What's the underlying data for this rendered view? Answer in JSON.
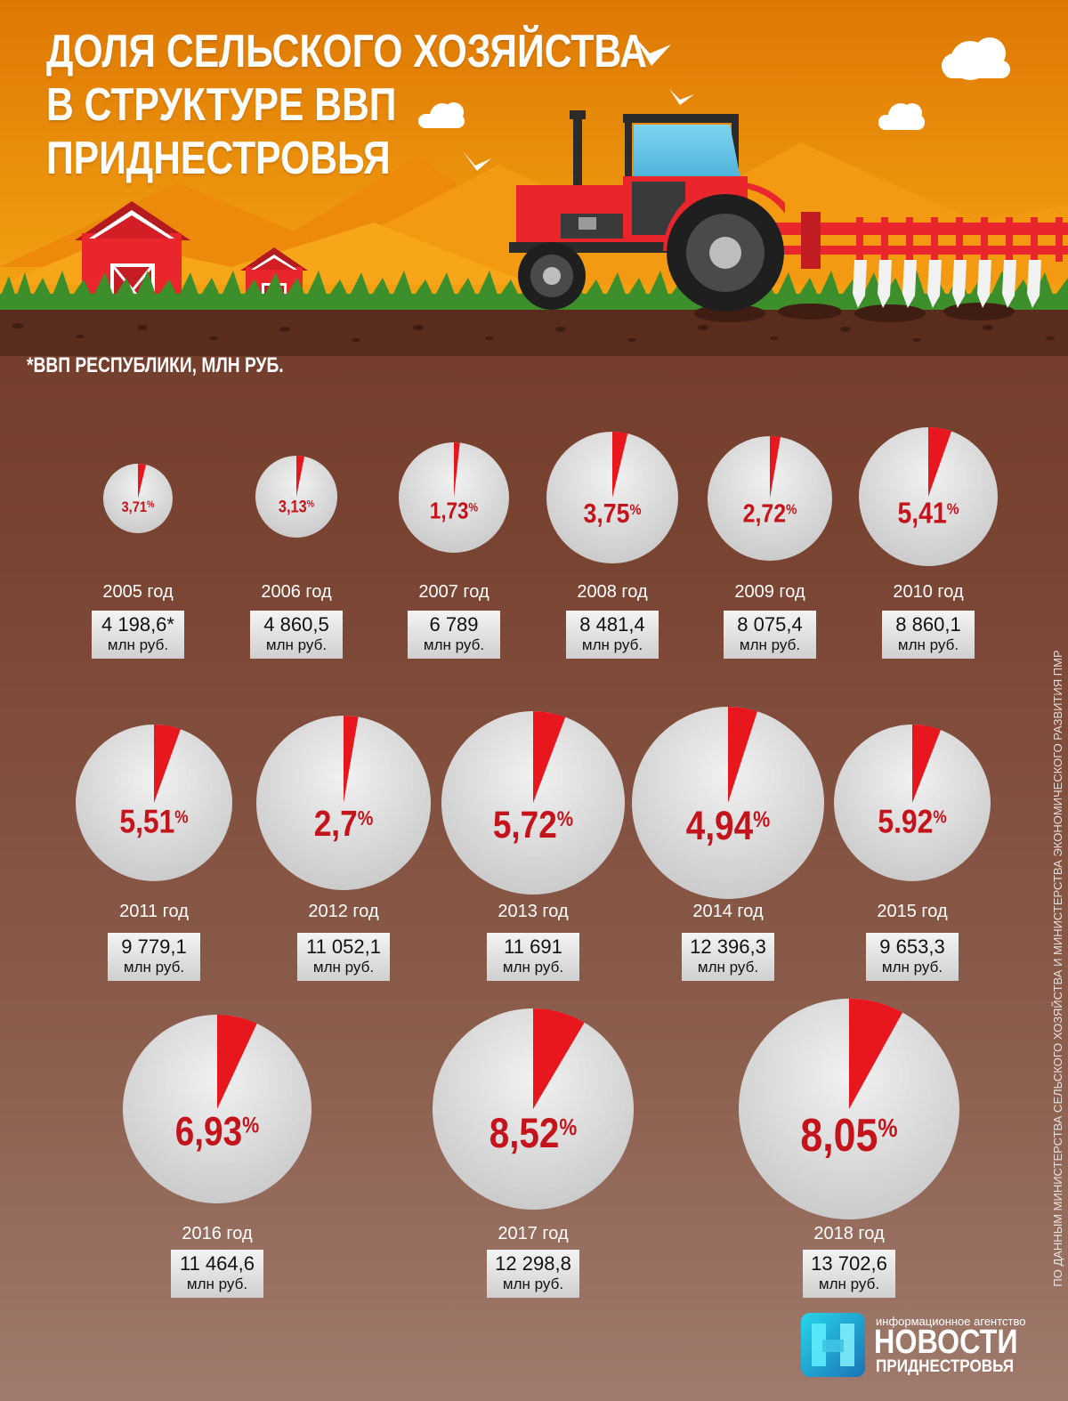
{
  "header": {
    "title_lines": [
      "ДОЛЯ СЕЛЬСКОГО ХОЗЯЙСТВА",
      "В СТРУКТУРЕ ВВП",
      "ПРИДНЕСТРОВЬЯ"
    ],
    "subtitle": "*ВВП РЕСПУБЛИКИ, МЛН РУБ."
  },
  "scene": {
    "icons": [
      "tractor-icon",
      "barn-icon",
      "cloud-icon",
      "bird-icon",
      "plough-icon"
    ],
    "colors": {
      "sky_top": "#e07a06",
      "sky_bottom": "#f3a012",
      "grass": "#3d8f2c",
      "soil": "#5a2c1e",
      "tractor_red": "#e8262b"
    }
  },
  "chart_data": {
    "type": "pie",
    "unit_label": "млн руб.",
    "colors": {
      "share": "#e8161d",
      "rest": "#dcdcdc",
      "label": "#c5131b"
    },
    "items": [
      {
        "year": "2005 год",
        "share": 3.71,
        "share_label": "3,71",
        "gdp": 4198.6,
        "gdp_label": "4 198,6*"
      },
      {
        "year": "2006 год",
        "share": 3.13,
        "share_label": "3,13",
        "gdp": 4860.5,
        "gdp_label": "4 860,5"
      },
      {
        "year": "2007 год",
        "share": 1.73,
        "share_label": "1,73",
        "gdp": 6789,
        "gdp_label": "6 789"
      },
      {
        "year": "2008 год",
        "share": 3.75,
        "share_label": "3,75",
        "gdp": 8481.4,
        "gdp_label": "8 481,4"
      },
      {
        "year": "2009 год",
        "share": 2.72,
        "share_label": "2,72",
        "gdp": 8075.4,
        "gdp_label": "8 075,4"
      },
      {
        "year": "2010 год",
        "share": 5.41,
        "share_label": "5,41",
        "gdp": 8860.1,
        "gdp_label": "8 860,1"
      },
      {
        "year": "2011 год",
        "share": 5.51,
        "share_label": "5,51",
        "gdp": 9779.1,
        "gdp_label": "9 779,1"
      },
      {
        "year": "2012 год",
        "share": 2.7,
        "share_label": "2,7",
        "gdp": 11052.1,
        "gdp_label": "11 052,1"
      },
      {
        "year": "2013 год",
        "share": 5.72,
        "share_label": "5,72",
        "gdp": 11691,
        "gdp_label": "11 691"
      },
      {
        "year": "2014 год",
        "share": 4.94,
        "share_label": "4,94",
        "gdp": 12396.3,
        "gdp_label": "12 396,3"
      },
      {
        "year": "2015 год",
        "share": 5.92,
        "share_label": "5.92",
        "gdp": 9653.3,
        "gdp_label": "9 653,3"
      },
      {
        "year": "2016 год",
        "share": 6.93,
        "share_label": "6,93",
        "gdp": 11464.6,
        "gdp_label": "11 464,6"
      },
      {
        "year": "2017 год",
        "share": 8.52,
        "share_label": "8,52",
        "gdp": 12298.8,
        "gdp_label": "12 298,8"
      },
      {
        "year": "2018 год",
        "share": 8.05,
        "share_label": "8,05",
        "gdp": 13702.6,
        "gdp_label": "13 702,6"
      }
    ]
  },
  "source_note": "ПО ДАННЫМ МИНИСТЕРСТВА СЕЛЬСКОГО ХОЗЯЙСТВА И МИНИСТЕРСТВА ЭКОНОМИЧЕСКОГО РАЗВИТИЯ ПМР",
  "logo": {
    "tagline": "информационное агентство",
    "name": "НОВОСТИ",
    "region": "ПРИДНЕСТРОВЬЯ"
  }
}
